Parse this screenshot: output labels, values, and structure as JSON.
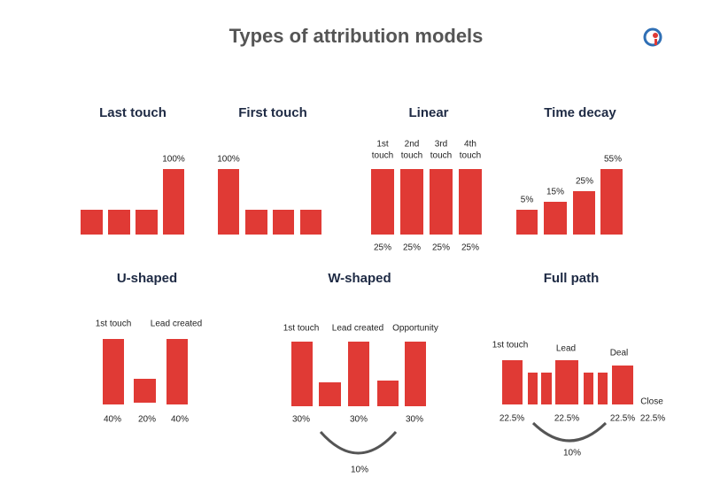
{
  "title": "Types of attribution models",
  "panels": [
    {
      "title": "Last touch",
      "top_labels": [
        "100%"
      ],
      "bottom_labels": []
    },
    {
      "title": "First touch",
      "top_labels": [
        "100%"
      ],
      "bottom_labels": []
    },
    {
      "title": "Linear",
      "top_labels": [
        [
          "1st",
          "touch"
        ],
        [
          "2nd",
          "touch"
        ],
        [
          "3rd",
          "touch"
        ],
        [
          "4th",
          "touch"
        ]
      ],
      "bottom_labels": [
        "25%",
        "25%",
        "25%",
        "25%"
      ]
    },
    {
      "title": "Time decay",
      "top_labels": [
        "5%",
        "15%",
        "25%",
        "55%"
      ],
      "bottom_labels": []
    },
    {
      "title": "U-shaped",
      "top_labels": [
        "1st touch",
        "Lead created"
      ],
      "bottom_labels": [
        "40%",
        "20%",
        "40%"
      ]
    },
    {
      "title": "W-shaped",
      "top_labels": [
        "1st touch",
        "Lead created",
        "Opportunity"
      ],
      "bottom_labels": [
        "30%",
        "30%",
        "30%"
      ],
      "note": "10%"
    },
    {
      "title": "Full path",
      "top_labels": [
        "1st touch",
        "Lead",
        "Deal",
        "Close"
      ],
      "bottom_labels": [
        "22.5%",
        "22.5%",
        "22.5%",
        "22.5%"
      ],
      "note": "10%"
    }
  ]
}
